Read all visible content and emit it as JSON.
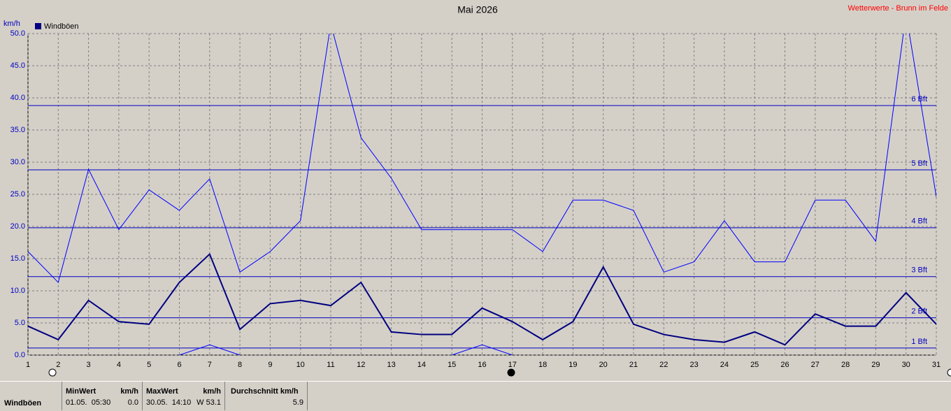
{
  "chart_data": {
    "type": "line",
    "title": "Mai 2026",
    "source": "Wetterwerte - Brunn im Felde",
    "y_label": "km/h",
    "legend": "Windböen",
    "x": [
      1,
      2,
      3,
      4,
      5,
      6,
      7,
      8,
      9,
      10,
      11,
      12,
      13,
      14,
      15,
      16,
      17,
      18,
      19,
      20,
      21,
      22,
      23,
      24,
      25,
      26,
      27,
      28,
      29,
      30,
      31
    ],
    "xlim": [
      1,
      31
    ],
    "xticks": [
      1,
      2,
      3,
      4,
      5,
      6,
      7,
      8,
      9,
      10,
      11,
      12,
      13,
      14,
      15,
      16,
      17,
      18,
      19,
      20,
      21,
      22,
      23,
      24,
      25,
      26,
      27,
      28,
      29,
      30,
      31
    ],
    "ylim": [
      0,
      50
    ],
    "yticks": [
      {
        "value": 0,
        "label": "0.0"
      },
      {
        "value": 5,
        "label": "5.0"
      },
      {
        "value": 10,
        "label": "10.0"
      },
      {
        "value": 15,
        "label": "15.0"
      },
      {
        "value": 20,
        "label": "20.0"
      },
      {
        "value": 25,
        "label": "25.0"
      },
      {
        "value": 30,
        "label": "30.0"
      },
      {
        "value": 35,
        "label": "35.0"
      },
      {
        "value": 40,
        "label": "40.0"
      },
      {
        "value": 45,
        "label": "45.0"
      },
      {
        "value": 50,
        "label": "50.0"
      }
    ],
    "grid": true,
    "series": [
      {
        "color": "#0000ff",
        "width": 1,
        "values": [
          16.1,
          11.3,
          28.9,
          19.5,
          25.7,
          22.5,
          27.4,
          12.9,
          16.1,
          20.9,
          51.5,
          33.8,
          27.5,
          19.5,
          19.5,
          19.5,
          19.5,
          16.1,
          24.1,
          24.1,
          22.5,
          12.9,
          14.5,
          20.9,
          14.5,
          14.5,
          24.1,
          24.1,
          17.7,
          53.1,
          24.6
        ]
      },
      {
        "color": "#000080",
        "width": 2,
        "values": [
          4.5,
          2.4,
          8.5,
          5.2,
          4.8,
          11.3,
          15.7,
          4.0,
          8.0,
          8.5,
          7.7,
          11.3,
          3.6,
          3.2,
          3.2,
          7.3,
          5.2,
          2.4,
          5.2,
          13.7,
          4.8,
          3.2,
          2.4,
          2.0,
          3.6,
          1.6,
          6.4,
          4.5,
          4.5,
          9.7,
          4.8
        ]
      },
      {
        "color": "#0000ff",
        "width": 1,
        "values": [
          null,
          null,
          null,
          null,
          null,
          0,
          1.6,
          0,
          null,
          null,
          null,
          null,
          null,
          null,
          0,
          1.6,
          0,
          null,
          null,
          null,
          null,
          null,
          null,
          null,
          null,
          null,
          null,
          null,
          null,
          null,
          null
        ]
      }
    ],
    "reference_lines": [
      {
        "value": 1.1,
        "label": "1 Bft"
      },
      {
        "value": 5.8,
        "label": "2 Bft"
      },
      {
        "value": 12.2,
        "label": "3 Bft"
      },
      {
        "value": 19.8,
        "label": "4 Bft"
      },
      {
        "value": 28.8,
        "label": "5 Bft"
      },
      {
        "value": 38.8,
        "label": "6 Bft"
      }
    ],
    "reference_color": "#0000c0"
  },
  "stats": {
    "name": "Windböen",
    "min": {
      "header": "MinWert",
      "unit": "km/h",
      "time": "01.05.  05:30",
      "value": "0.0"
    },
    "max": {
      "header": "MaxWert",
      "unit": "km/h",
      "time": "30.05.  14:10",
      "value": "W 53.1"
    },
    "avg": {
      "header": "Durchschnitt km/h",
      "value": "5.9"
    }
  }
}
